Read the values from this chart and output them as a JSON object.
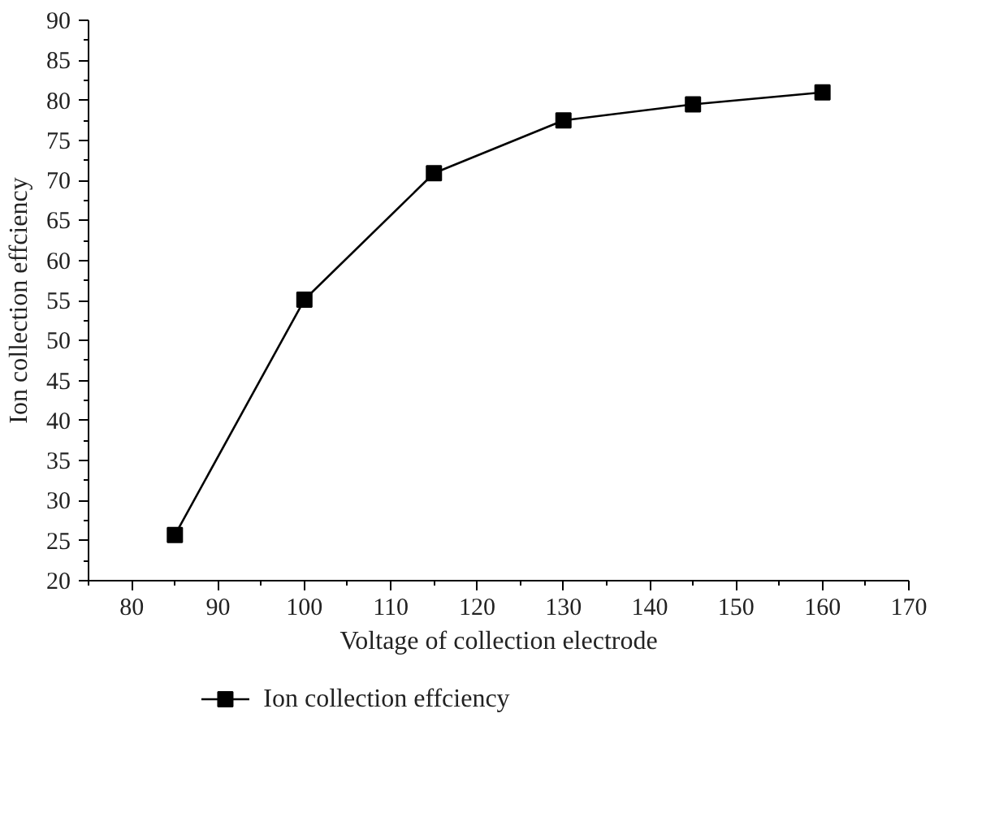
{
  "chart_data": {
    "type": "line",
    "xlabel": "Voltage of collection electrode",
    "ylabel": "Ion collection effciency",
    "x": [
      85,
      100,
      115,
      130,
      145,
      160
    ],
    "series": [
      {
        "name": "Ion collection effciency",
        "color": "#000000",
        "values": [
          25.7,
          55.1,
          70.9,
          77.5,
          79.5,
          81.0
        ]
      }
    ],
    "xlim": [
      75,
      170
    ],
    "xticks": [
      80,
      90,
      100,
      110,
      120,
      130,
      140,
      150,
      160,
      170
    ],
    "ylim": [
      20,
      90
    ],
    "yticks": [
      20,
      25,
      30,
      35,
      40,
      45,
      50,
      55,
      60,
      65,
      70,
      75,
      80,
      85,
      90
    ],
    "grid": false,
    "legend": "bottom",
    "marker": "square",
    "line_style": "solid"
  }
}
